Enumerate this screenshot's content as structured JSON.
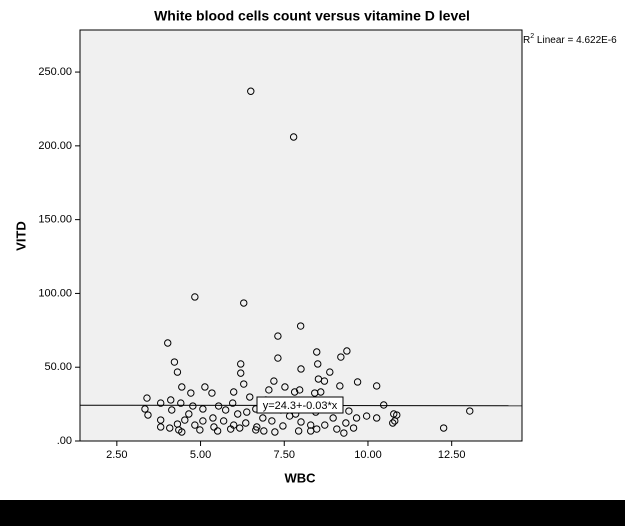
{
  "chart_data": {
    "type": "scatter",
    "title": "White blood cells count versus vitamine D level",
    "x_label": "WBC",
    "y_label": "VITD",
    "color": "#000000",
    "plot_background": "#f0f0f0",
    "xlim": [
      1.4,
      14.6
    ],
    "ylim": [
      0,
      278.5
    ],
    "xticks": [
      {
        "value": 2.5,
        "label": "2.50"
      },
      {
        "value": 5,
        "label": "5.00"
      },
      {
        "value": 7.5,
        "label": "7.50"
      },
      {
        "value": 10,
        "label": "10.00"
      },
      {
        "value": 12.5,
        "label": "12.50"
      }
    ],
    "yticks": [
      {
        "value": 0,
        "label": ".00"
      },
      {
        "value": 50,
        "label": "50.00"
      },
      {
        "value": 100,
        "label": "100.00"
      },
      {
        "value": 150,
        "label": "150.00"
      },
      {
        "value": 200,
        "label": "200.00"
      },
      {
        "value": 250,
        "label": "250.00"
      }
    ],
    "fit": {
      "intercept": 24.3,
      "slope": -0.03,
      "label": "y=24.3+-0.03*x"
    },
    "r2": {
      "prefix": "R",
      "sup": "2",
      "text": " Linear = 4.622E-6"
    },
    "x": [
      6.5,
      7.78,
      4.83,
      6.29,
      7.99,
      7.31,
      4.02,
      9.37,
      8.47,
      7.31,
      9.19,
      4.22,
      6.2,
      8.5,
      4.31,
      6.2,
      8.0,
      8.86,
      9.69,
      7.19,
      8.52,
      8.7,
      10.26,
      4.44,
      5.13,
      6.29,
      7.52,
      7.96,
      7.04,
      9.16,
      4.71,
      5.34,
      5.99,
      6.47,
      3.4,
      6.95,
      7.81,
      8.41,
      8.59,
      4.11,
      3.81,
      4.41,
      10.47,
      4.77,
      5.54,
      5.96,
      6.65,
      7.4,
      8.99,
      9.43,
      3.34,
      4.14,
      5.07,
      5.75,
      6.38,
      7.84,
      8.44,
      9.96,
      10.77,
      10.86,
      13.04,
      3.43,
      4.65,
      5.37,
      6.11,
      6.86,
      7.66,
      8.96,
      9.66,
      10.26,
      3.81,
      4.53,
      5.07,
      5.69,
      6.35,
      7.13,
      8.0,
      8.71,
      9.34,
      10.8,
      4.31,
      4.83,
      5.4,
      5.99,
      6.68,
      7.46,
      8.29,
      9.57,
      10.74,
      3.81,
      4.08,
      4.35,
      4.98,
      5.51,
      6.17,
      6.65,
      7.22,
      7.93,
      9.07,
      9.28,
      12.26,
      4.44,
      5.9,
      6.89,
      8.47,
      8.29
    ],
    "values": [
      237,
      206,
      97.6,
      93.5,
      77.9,
      71.1,
      66.4,
      61,
      60.3,
      56.2,
      56.9,
      53.5,
      52.2,
      52.2,
      46.7,
      46,
      48.8,
      46.7,
      40,
      40.6,
      42,
      40.6,
      37.3,
      36.6,
      36.6,
      38.6,
      36.6,
      34.6,
      34.6,
      37.3,
      32.5,
      32.5,
      33.2,
      29.8,
      29.1,
      27.8,
      33.2,
      32.5,
      33.2,
      27.8,
      25.7,
      25.7,
      24.4,
      23.7,
      23.7,
      25.7,
      21.7,
      21,
      24.4,
      20.3,
      21.7,
      21,
      21.7,
      21,
      19.6,
      18.3,
      19.6,
      16.9,
      18.3,
      17.6,
      20.3,
      17.6,
      18.3,
      15.6,
      18.3,
      15.6,
      16.9,
      15.6,
      15.6,
      15.6,
      14.2,
      14.2,
      13.6,
      13.6,
      12.2,
      13.6,
      12.9,
      10.8,
      12.2,
      13.6,
      11.5,
      10.8,
      9.5,
      10.8,
      9.5,
      10.2,
      10.8,
      8.8,
      12.2,
      9.5,
      8.8,
      7.5,
      7.5,
      6.8,
      8.8,
      7.5,
      6.1,
      6.8,
      8.1,
      5.4,
      8.8,
      6.1,
      8.1,
      6.8,
      8.1,
      6.8
    ]
  }
}
